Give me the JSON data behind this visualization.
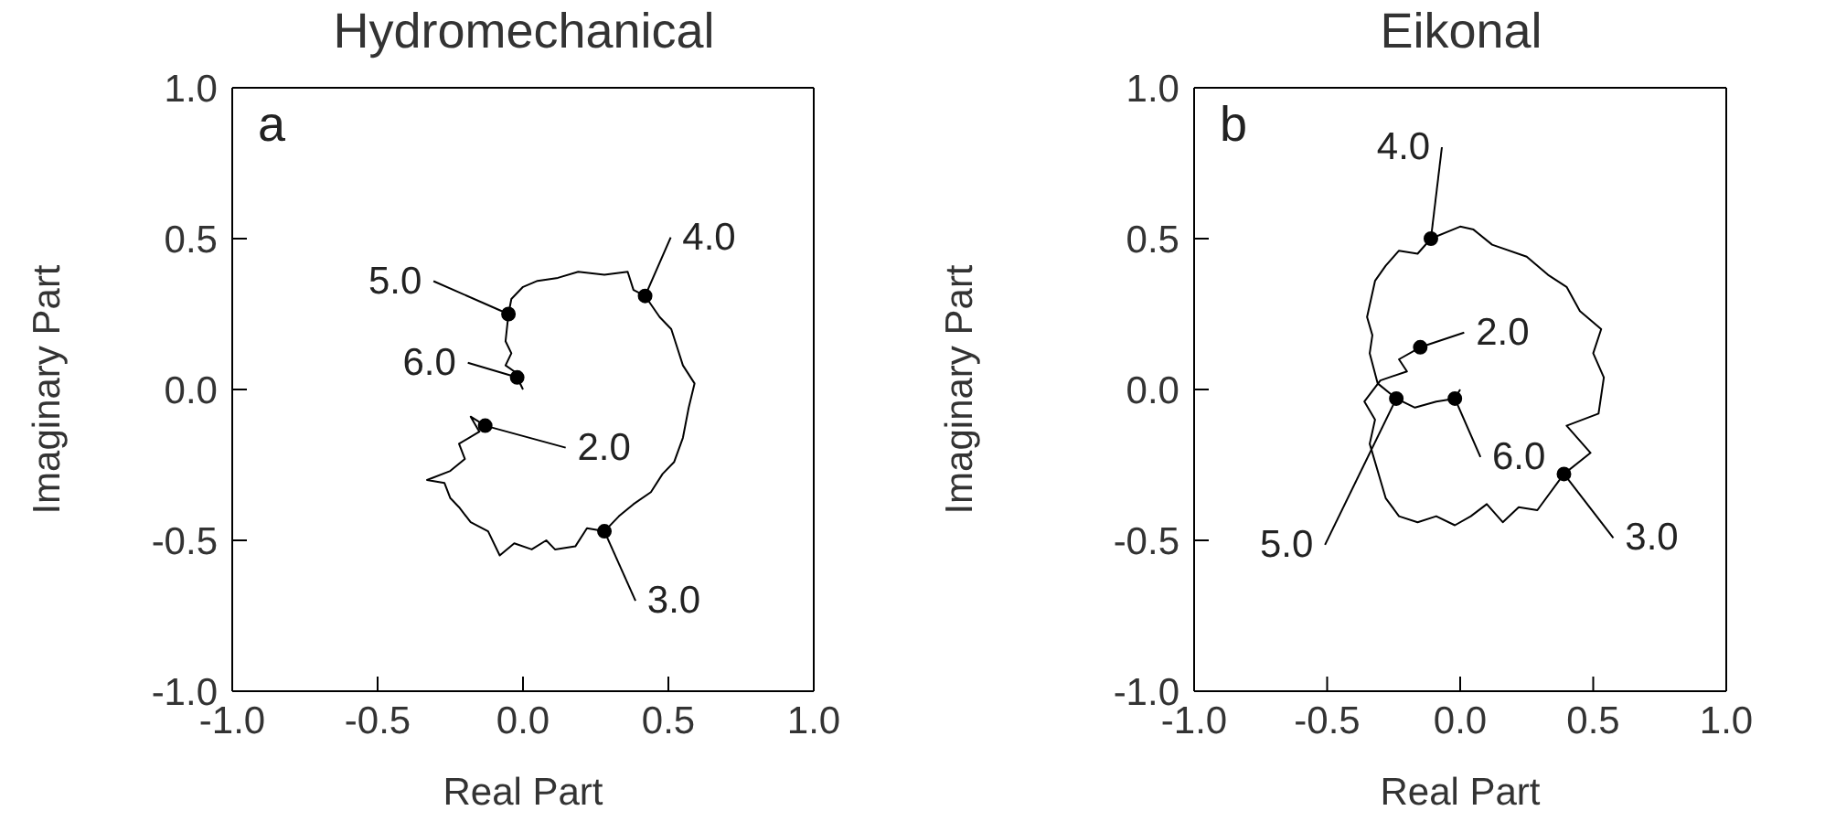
{
  "chart_data": [
    {
      "type": "line",
      "title": "Hydromechanical",
      "xlabel": "Real Part",
      "ylabel": "Imaginary Part",
      "marker": "none",
      "xlim": [
        -1,
        1
      ],
      "ylim": [
        -1,
        1
      ],
      "xticks": [
        {
          "value": -1,
          "label": "-1.0"
        },
        {
          "value": -0.5,
          "label": "-0.5"
        },
        {
          "value": 0,
          "label": "0.0"
        },
        {
          "value": 0.5,
          "label": "0.5"
        },
        {
          "value": 1,
          "label": "1.0"
        }
      ],
      "yticks": [
        {
          "value": -1,
          "label": "-1.0"
        },
        {
          "value": -0.5,
          "label": "-0.5"
        },
        {
          "value": 0,
          "label": "0.0"
        },
        {
          "value": 0.5,
          "label": "0.5"
        },
        {
          "value": 1,
          "label": "1.0"
        }
      ],
      "series": [
        {
          "color": "#000000",
          "x": [
            -0.13,
            -0.18,
            -0.15,
            -0.22,
            -0.2,
            -0.25,
            -0.33,
            -0.27,
            -0.25,
            -0.22,
            -0.18,
            -0.12,
            -0.08,
            -0.03,
            0.03,
            0.08,
            0.11,
            0.18,
            0.22,
            0.28,
            0.33,
            0.38,
            0.44,
            0.48,
            0.52,
            0.55,
            0.57,
            0.59,
            0.55,
            0.53,
            0.51,
            0.47,
            0.42,
            0.38,
            0.36,
            0.28,
            0.19,
            0.12,
            0.05,
            0.0,
            -0.04,
            -0.05,
            -0.06,
            -0.04,
            -0.06,
            -0.03,
            -0.02,
            0.0
          ],
          "values": [
            -0.12,
            -0.09,
            -0.14,
            -0.18,
            -0.23,
            -0.27,
            -0.3,
            -0.31,
            -0.36,
            -0.39,
            -0.44,
            -0.47,
            -0.55,
            -0.51,
            -0.53,
            -0.5,
            -0.53,
            -0.52,
            -0.46,
            -0.47,
            -0.42,
            -0.38,
            -0.34,
            -0.28,
            -0.24,
            -0.16,
            -0.06,
            0.02,
            0.08,
            0.14,
            0.2,
            0.24,
            0.31,
            0.33,
            0.39,
            0.38,
            0.39,
            0.37,
            0.36,
            0.34,
            0.3,
            0.25,
            0.16,
            0.12,
            0.08,
            0.06,
            0.04,
            0.0
          ]
        }
      ],
      "annotations": [
        "a",
        {
          "text": "2.0",
          "x": -0.13,
          "y": -0.12
        },
        {
          "text": "3.0",
          "x": 0.28,
          "y": -0.47
        },
        {
          "text": "4.0",
          "x": 0.42,
          "y": 0.31
        },
        {
          "text": "5.0",
          "x": -0.05,
          "y": 0.25
        },
        {
          "text": "6.0",
          "x": -0.02,
          "y": 0.04
        }
      ]
    },
    {
      "type": "line",
      "title": "Eikonal",
      "xlabel": "Real Part",
      "ylabel": "Imaginary Part",
      "marker": "none",
      "xlim": [
        -1,
        1
      ],
      "ylim": [
        -1,
        1
      ],
      "xticks": [
        {
          "value": -1,
          "label": "-1.0"
        },
        {
          "value": -0.5,
          "label": "-0.5"
        },
        {
          "value": 0,
          "label": "0.0"
        },
        {
          "value": 0.5,
          "label": "0.5"
        },
        {
          "value": 1,
          "label": "1.0"
        }
      ],
      "yticks": [
        {
          "value": -1,
          "label": "-1.0"
        },
        {
          "value": -0.5,
          "label": "-0.5"
        },
        {
          "value": 0,
          "label": "0.0"
        },
        {
          "value": 0.5,
          "label": "0.5"
        },
        {
          "value": 1,
          "label": "1.0"
        }
      ],
      "series": [
        {
          "color": "#000000",
          "x": [
            -0.15,
            -0.23,
            -0.2,
            -0.3,
            -0.36,
            -0.32,
            -0.34,
            -0.3,
            -0.28,
            -0.23,
            -0.16,
            -0.09,
            -0.02,
            0.04,
            0.1,
            0.16,
            0.22,
            0.29,
            0.39,
            0.49,
            0.4,
            0.52,
            0.54,
            0.5,
            0.53,
            0.45,
            0.4,
            0.33,
            0.25,
            0.12,
            0.05,
            0.0,
            -0.11,
            -0.16,
            -0.23,
            -0.28,
            -0.32,
            -0.35,
            -0.33,
            -0.34,
            -0.31,
            -0.24,
            -0.17,
            -0.09,
            -0.02,
            0.0
          ],
          "values": [
            0.14,
            0.1,
            0.06,
            0.03,
            -0.04,
            -0.1,
            -0.18,
            -0.3,
            -0.36,
            -0.42,
            -0.44,
            -0.42,
            -0.45,
            -0.42,
            -0.38,
            -0.44,
            -0.39,
            -0.4,
            -0.28,
            -0.21,
            -0.12,
            -0.08,
            0.04,
            0.12,
            0.2,
            0.26,
            0.34,
            0.38,
            0.44,
            0.48,
            0.53,
            0.54,
            0.5,
            0.45,
            0.46,
            0.41,
            0.36,
            0.24,
            0.18,
            0.12,
            0.02,
            -0.03,
            -0.06,
            -0.04,
            -0.03,
            0.0
          ]
        }
      ],
      "annotations": [
        "b",
        {
          "text": "4.0",
          "x": -0.11,
          "y": 0.5
        },
        {
          "text": "2.0",
          "x": -0.15,
          "y": 0.14
        },
        {
          "text": "6.0",
          "x": -0.02,
          "y": -0.03
        },
        {
          "text": "5.0",
          "x": -0.24,
          "y": -0.03
        },
        {
          "text": "3.0",
          "x": 0.39,
          "y": -0.28
        }
      ]
    }
  ]
}
